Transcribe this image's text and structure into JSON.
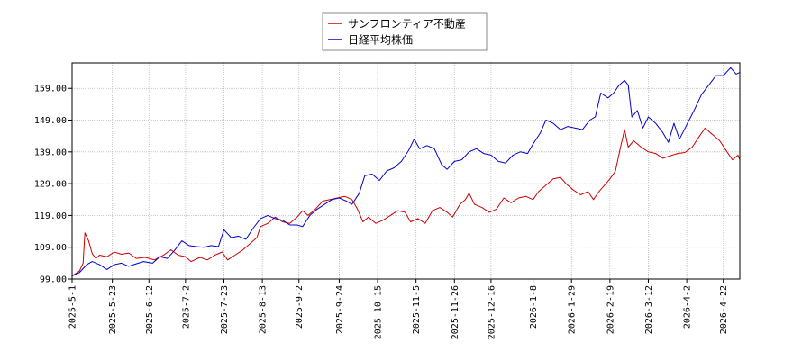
{
  "chart_data": {
    "type": "line",
    "title": "",
    "xlabel": "",
    "ylabel": "",
    "ylim": [
      99.0,
      167.0
    ],
    "yticks": [
      99.0,
      109.0,
      119.0,
      129.0,
      139.0,
      149.0,
      159.0
    ],
    "ytick_labels": [
      "99.00",
      "109.00",
      "119.00",
      "129.00",
      "139.00",
      "149.00",
      "159.00"
    ],
    "xlim": [
      "2025-05-01",
      "2026-05-01"
    ],
    "xticks": [
      "2025-05-01",
      "2025-05-23",
      "2025-06-12",
      "2025-07-02",
      "2025-07-23",
      "2025-08-13",
      "2025-09-02",
      "2025-09-24",
      "2025-10-15",
      "2025-11-05",
      "2025-11-26",
      "2025-12-16",
      "2026-01-08",
      "2026-01-29",
      "2026-02-19",
      "2026-03-12",
      "2026-04-02",
      "2026-04-22"
    ],
    "xtick_labels": [
      "2025-5-1",
      "2025-5-23",
      "2025-6-12",
      "2025-7-2",
      "2025-7-23",
      "2025-8-13",
      "2025-9-2",
      "2025-9-24",
      "2025-10-15",
      "2025-11-5",
      "2025-11-26",
      "2025-12-16",
      "2026-1-8",
      "2026-1-29",
      "2026-2-19",
      "2026-3-12",
      "2026-4-2",
      "2026-4-22"
    ],
    "grid": true,
    "legend_position": "top-center",
    "series": [
      {
        "name": "サンフロンティア不動産",
        "color": "#cc0000",
        "points": [
          [
            "2025-05-01",
            100.0
          ],
          [
            "2025-05-05",
            101.5
          ],
          [
            "2025-05-07",
            104.0
          ],
          [
            "2025-05-08",
            113.5
          ],
          [
            "2025-05-10",
            111.0
          ],
          [
            "2025-05-12",
            107.0
          ],
          [
            "2025-05-14",
            105.5
          ],
          [
            "2025-05-16",
            106.5
          ],
          [
            "2025-05-20",
            106.0
          ],
          [
            "2025-05-24",
            107.5
          ],
          [
            "2025-05-28",
            106.8
          ],
          [
            "2025-06-01",
            107.2
          ],
          [
            "2025-06-05",
            105.5
          ],
          [
            "2025-06-10",
            105.8
          ],
          [
            "2025-06-15",
            105.0
          ],
          [
            "2025-06-20",
            106.5
          ],
          [
            "2025-06-24",
            108.2
          ],
          [
            "2025-06-28",
            106.5
          ],
          [
            "2025-07-02",
            106.0
          ],
          [
            "2025-07-05",
            104.5
          ],
          [
            "2025-07-10",
            105.8
          ],
          [
            "2025-07-14",
            105.0
          ],
          [
            "2025-07-18",
            106.5
          ],
          [
            "2025-07-22",
            107.5
          ],
          [
            "2025-07-25",
            105.0
          ],
          [
            "2025-07-29",
            106.5
          ],
          [
            "2025-08-02",
            108.0
          ],
          [
            "2025-08-06",
            110.0
          ],
          [
            "2025-08-10",
            112.0
          ],
          [
            "2025-08-12",
            115.5
          ],
          [
            "2025-08-16",
            116.5
          ],
          [
            "2025-08-20",
            118.5
          ],
          [
            "2025-08-24",
            117.0
          ],
          [
            "2025-08-28",
            116.5
          ],
          [
            "2025-09-01",
            118.5
          ],
          [
            "2025-09-04",
            120.5
          ],
          [
            "2025-09-07",
            119.0
          ],
          [
            "2025-09-11",
            121.0
          ],
          [
            "2025-09-15",
            123.5
          ],
          [
            "2025-09-19",
            124.0
          ],
          [
            "2025-09-23",
            124.5
          ],
          [
            "2025-09-27",
            125.0
          ],
          [
            "2025-10-01",
            124.0
          ],
          [
            "2025-10-04",
            121.0
          ],
          [
            "2025-10-07",
            117.0
          ],
          [
            "2025-10-10",
            118.5
          ],
          [
            "2025-10-14",
            116.5
          ],
          [
            "2025-10-18",
            117.5
          ],
          [
            "2025-10-22",
            119.0
          ],
          [
            "2025-10-26",
            120.5
          ],
          [
            "2025-10-30",
            120.0
          ],
          [
            "2025-11-02",
            117.0
          ],
          [
            "2025-11-06",
            118.0
          ],
          [
            "2025-11-10",
            116.5
          ],
          [
            "2025-11-14",
            120.5
          ],
          [
            "2025-11-18",
            121.5
          ],
          [
            "2025-11-22",
            120.0
          ],
          [
            "2025-11-25",
            118.5
          ],
          [
            "2025-11-29",
            122.5
          ],
          [
            "2025-12-02",
            124.0
          ],
          [
            "2025-12-04",
            126.0
          ],
          [
            "2025-12-07",
            122.5
          ],
          [
            "2025-12-11",
            121.5
          ],
          [
            "2025-12-15",
            120.0
          ],
          [
            "2025-12-19",
            121.0
          ],
          [
            "2025-12-23",
            124.5
          ],
          [
            "2025-12-27",
            123.0
          ],
          [
            "2025-12-31",
            124.5
          ],
          [
            "2026-01-04",
            125.0
          ],
          [
            "2026-01-08",
            124.0
          ],
          [
            "2026-01-11",
            126.5
          ],
          [
            "2026-01-15",
            128.5
          ],
          [
            "2026-01-19",
            130.5
          ],
          [
            "2026-01-23",
            131.0
          ],
          [
            "2026-01-26",
            129.0
          ],
          [
            "2026-01-30",
            127.0
          ],
          [
            "2026-02-03",
            125.5
          ],
          [
            "2026-02-07",
            126.5
          ],
          [
            "2026-02-10",
            124.0
          ],
          [
            "2026-02-13",
            126.5
          ],
          [
            "2026-02-16",
            128.5
          ],
          [
            "2026-02-19",
            130.5
          ],
          [
            "2026-02-22",
            133.0
          ],
          [
            "2026-02-25",
            141.0
          ],
          [
            "2026-02-27",
            146.0
          ],
          [
            "2026-03-01",
            140.5
          ],
          [
            "2026-03-04",
            142.5
          ],
          [
            "2026-03-08",
            140.5
          ],
          [
            "2026-03-12",
            139.0
          ],
          [
            "2026-03-16",
            138.5
          ],
          [
            "2026-03-20",
            137.0
          ],
          [
            "2026-03-24",
            137.8
          ],
          [
            "2026-03-28",
            138.5
          ],
          [
            "2026-04-01",
            138.8
          ],
          [
            "2026-04-05",
            140.5
          ],
          [
            "2026-04-09",
            144.0
          ],
          [
            "2026-04-12",
            146.5
          ],
          [
            "2026-04-16",
            144.5
          ],
          [
            "2026-04-20",
            142.5
          ],
          [
            "2026-04-24",
            139.0
          ],
          [
            "2026-04-27",
            136.5
          ],
          [
            "2026-04-30",
            138.0
          ],
          [
            "2026-05-01",
            136.5
          ]
        ]
      },
      {
        "name": "日経平均株価",
        "color": "#0000cc",
        "points": [
          [
            "2025-05-01",
            100.0
          ],
          [
            "2025-05-05",
            101.0
          ],
          [
            "2025-05-09",
            103.5
          ],
          [
            "2025-05-12",
            104.5
          ],
          [
            "2025-05-16",
            103.5
          ],
          [
            "2025-05-20",
            102.0
          ],
          [
            "2025-05-24",
            103.5
          ],
          [
            "2025-05-28",
            104.0
          ],
          [
            "2025-06-01",
            103.0
          ],
          [
            "2025-06-05",
            103.8
          ],
          [
            "2025-06-09",
            104.5
          ],
          [
            "2025-06-14",
            104.0
          ],
          [
            "2025-06-18",
            106.0
          ],
          [
            "2025-06-22",
            105.5
          ],
          [
            "2025-06-26",
            108.0
          ],
          [
            "2025-06-30",
            111.0
          ],
          [
            "2025-07-04",
            109.5
          ],
          [
            "2025-07-08",
            109.2
          ],
          [
            "2025-07-12",
            109.0
          ],
          [
            "2025-07-16",
            109.5
          ],
          [
            "2025-07-20",
            109.2
          ],
          [
            "2025-07-23",
            114.5
          ],
          [
            "2025-07-27",
            112.0
          ],
          [
            "2025-07-31",
            112.5
          ],
          [
            "2025-08-04",
            111.5
          ],
          [
            "2025-08-08",
            115.0
          ],
          [
            "2025-08-12",
            118.0
          ],
          [
            "2025-08-16",
            119.0
          ],
          [
            "2025-08-20",
            118.0
          ],
          [
            "2025-08-24",
            117.5
          ],
          [
            "2025-08-28",
            116.0
          ],
          [
            "2025-09-01",
            116.0
          ],
          [
            "2025-09-04",
            115.5
          ],
          [
            "2025-09-08",
            119.0
          ],
          [
            "2025-09-12",
            121.0
          ],
          [
            "2025-09-16",
            122.5
          ],
          [
            "2025-09-20",
            124.0
          ],
          [
            "2025-09-24",
            124.5
          ],
          [
            "2025-09-28",
            123.5
          ],
          [
            "2025-10-01",
            122.5
          ],
          [
            "2025-10-05",
            126.0
          ],
          [
            "2025-10-08",
            131.5
          ],
          [
            "2025-10-12",
            132.0
          ],
          [
            "2025-10-16",
            130.0
          ],
          [
            "2025-10-20",
            133.0
          ],
          [
            "2025-10-24",
            134.0
          ],
          [
            "2025-10-28",
            136.0
          ],
          [
            "2025-11-01",
            139.5
          ],
          [
            "2025-11-04",
            143.0
          ],
          [
            "2025-11-07",
            140.0
          ],
          [
            "2025-11-11",
            141.0
          ],
          [
            "2025-11-15",
            140.0
          ],
          [
            "2025-11-19",
            135.0
          ],
          [
            "2025-11-22",
            133.5
          ],
          [
            "2025-11-26",
            136.0
          ],
          [
            "2025-11-30",
            136.5
          ],
          [
            "2025-12-04",
            139.0
          ],
          [
            "2025-12-08",
            140.0
          ],
          [
            "2025-12-12",
            138.5
          ],
          [
            "2025-12-16",
            138.0
          ],
          [
            "2025-12-20",
            136.0
          ],
          [
            "2025-12-24",
            135.5
          ],
          [
            "2025-12-28",
            138.0
          ],
          [
            "2026-01-01",
            139.0
          ],
          [
            "2026-01-05",
            138.5
          ],
          [
            "2026-01-08",
            141.5
          ],
          [
            "2026-01-12",
            145.0
          ],
          [
            "2026-01-15",
            149.0
          ],
          [
            "2026-01-19",
            148.0
          ],
          [
            "2026-01-23",
            146.0
          ],
          [
            "2026-01-27",
            147.0
          ],
          [
            "2026-01-31",
            146.5
          ],
          [
            "2026-02-04",
            146.0
          ],
          [
            "2026-02-08",
            149.0
          ],
          [
            "2026-02-11",
            150.0
          ],
          [
            "2026-02-14",
            157.5
          ],
          [
            "2026-02-18",
            156.0
          ],
          [
            "2026-02-21",
            157.5
          ],
          [
            "2026-02-24",
            160.0
          ],
          [
            "2026-02-27",
            161.5
          ],
          [
            "2026-03-01",
            160.0
          ],
          [
            "2026-03-03",
            150.0
          ],
          [
            "2026-03-06",
            152.0
          ],
          [
            "2026-03-09",
            146.5
          ],
          [
            "2026-03-12",
            150.0
          ],
          [
            "2026-03-16",
            148.0
          ],
          [
            "2026-03-20",
            145.0
          ],
          [
            "2026-03-23",
            142.0
          ],
          [
            "2026-03-26",
            148.0
          ],
          [
            "2026-03-29",
            143.0
          ],
          [
            "2026-04-02",
            147.5
          ],
          [
            "2026-04-06",
            152.0
          ],
          [
            "2026-04-10",
            157.0
          ],
          [
            "2026-04-14",
            160.0
          ],
          [
            "2026-04-18",
            163.0
          ],
          [
            "2026-04-22",
            163.0
          ],
          [
            "2026-04-26",
            165.5
          ],
          [
            "2026-04-29",
            163.5
          ],
          [
            "2026-05-01",
            164.0
          ]
        ]
      }
    ]
  }
}
